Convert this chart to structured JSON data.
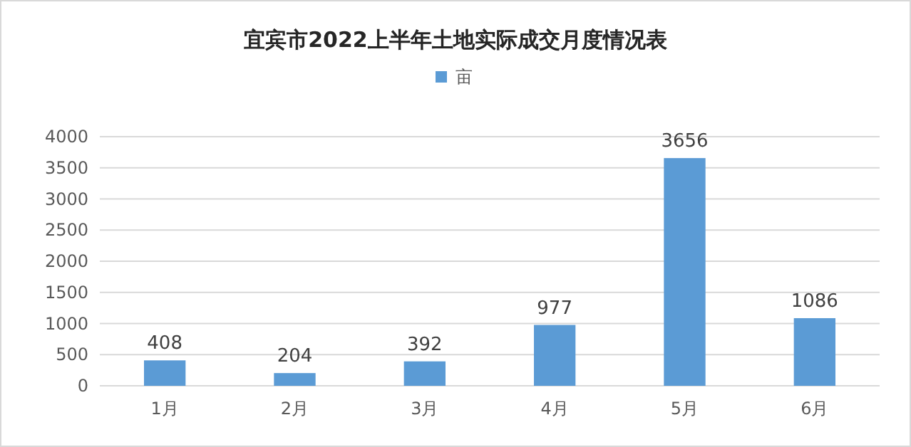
{
  "chart_data": {
    "type": "bar",
    "title": "宜宾市2022上半年土地实际成交月度情况表",
    "categories": [
      "1月",
      "2月",
      "3月",
      "4月",
      "5月",
      "6月"
    ],
    "series": [
      {
        "name": "亩",
        "color": "#5b9bd5",
        "values": [
          408,
          204,
          392,
          977,
          3656,
          1086
        ]
      }
    ],
    "ylim": [
      0,
      4000
    ],
    "yticks": [
      0,
      500,
      1000,
      1500,
      2000,
      2500,
      3000,
      3500,
      4000
    ],
    "grid": "y",
    "legend": "top",
    "data_labels": true
  }
}
